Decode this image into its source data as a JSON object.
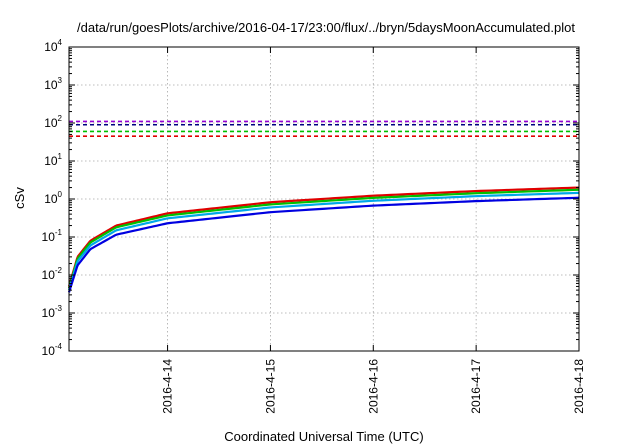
{
  "chart_data": {
    "type": "line",
    "title": "/data/run/goesPlots/archive/2016-04-17/23:00/flux/../bryn/5daysMoonAccumulated.plot",
    "xlabel": "Coordinated Universal Time (UTC)",
    "ylabel": "cSv",
    "x_ticks": [
      "2016-4-14",
      "2016-4-15",
      "2016-4-16",
      "2016-4-17",
      "2016-4-18"
    ],
    "xlim": [
      "2016-04-13T01:00",
      "2016-04-18T00:00"
    ],
    "y_scale": "log",
    "ylim": [
      0.0001,
      10000
    ],
    "y_ticks": [
      {
        "value": 0.0001,
        "base": "10",
        "exp": "-4"
      },
      {
        "value": 0.001,
        "base": "10",
        "exp": "-3"
      },
      {
        "value": 0.01,
        "base": "10",
        "exp": "-2"
      },
      {
        "value": 0.1,
        "base": "10",
        "exp": "-1"
      },
      {
        "value": 1,
        "base": "10",
        "exp": "0"
      },
      {
        "value": 10,
        "base": "10",
        "exp": "1"
      },
      {
        "value": 100,
        "base": "10",
        "exp": "2"
      },
      {
        "value": 1000,
        "base": "10",
        "exp": "3"
      },
      {
        "value": 10000,
        "base": "10",
        "exp": "4"
      }
    ],
    "grid": true,
    "thresholds": [
      {
        "value": 110,
        "color": "#9400d3",
        "style": "dashed"
      },
      {
        "value": 90,
        "color": "#000080",
        "style": "dashed"
      },
      {
        "value": 60,
        "color": "#00c000",
        "style": "dashed"
      },
      {
        "value": 45,
        "color": "#e00000",
        "style": "dashed"
      }
    ],
    "series": [
      {
        "color": "#e00000",
        "x": [
          "2016-04-13T01:00",
          "2016-04-13T03:00",
          "2016-04-13T06:00",
          "2016-04-13T12:00",
          "2016-04-14T00:00",
          "2016-04-15T00:00",
          "2016-04-16T00:00",
          "2016-04-17T00:00",
          "2016-04-18T00:00"
        ],
        "y": [
          0.005,
          0.03,
          0.08,
          0.2,
          0.42,
          0.82,
          1.22,
          1.62,
          2.0
        ]
      },
      {
        "color": "#00c000",
        "x": [
          "2016-04-13T01:00",
          "2016-04-13T03:00",
          "2016-04-13T06:00",
          "2016-04-13T12:00",
          "2016-04-14T00:00",
          "2016-04-15T00:00",
          "2016-04-16T00:00",
          "2016-04-17T00:00",
          "2016-04-18T00:00"
        ],
        "y": [
          0.0045,
          0.027,
          0.072,
          0.18,
          0.37,
          0.72,
          1.07,
          1.42,
          1.75
        ]
      },
      {
        "color": "#00a8e8",
        "x": [
          "2016-04-13T01:00",
          "2016-04-13T03:00",
          "2016-04-13T06:00",
          "2016-04-13T12:00",
          "2016-04-14T00:00",
          "2016-04-15T00:00",
          "2016-04-16T00:00",
          "2016-04-17T00:00",
          "2016-04-18T00:00"
        ],
        "y": [
          0.004,
          0.023,
          0.06,
          0.15,
          0.31,
          0.6,
          0.9,
          1.19,
          1.45
        ]
      },
      {
        "color": "#0000e0",
        "x": [
          "2016-04-13T01:00",
          "2016-04-13T03:00",
          "2016-04-13T06:00",
          "2016-04-13T12:00",
          "2016-04-14T00:00",
          "2016-04-15T00:00",
          "2016-04-16T00:00",
          "2016-04-17T00:00",
          "2016-04-18T00:00"
        ],
        "y": [
          0.0035,
          0.018,
          0.048,
          0.115,
          0.23,
          0.45,
          0.67,
          0.88,
          1.08
        ]
      }
    ]
  }
}
